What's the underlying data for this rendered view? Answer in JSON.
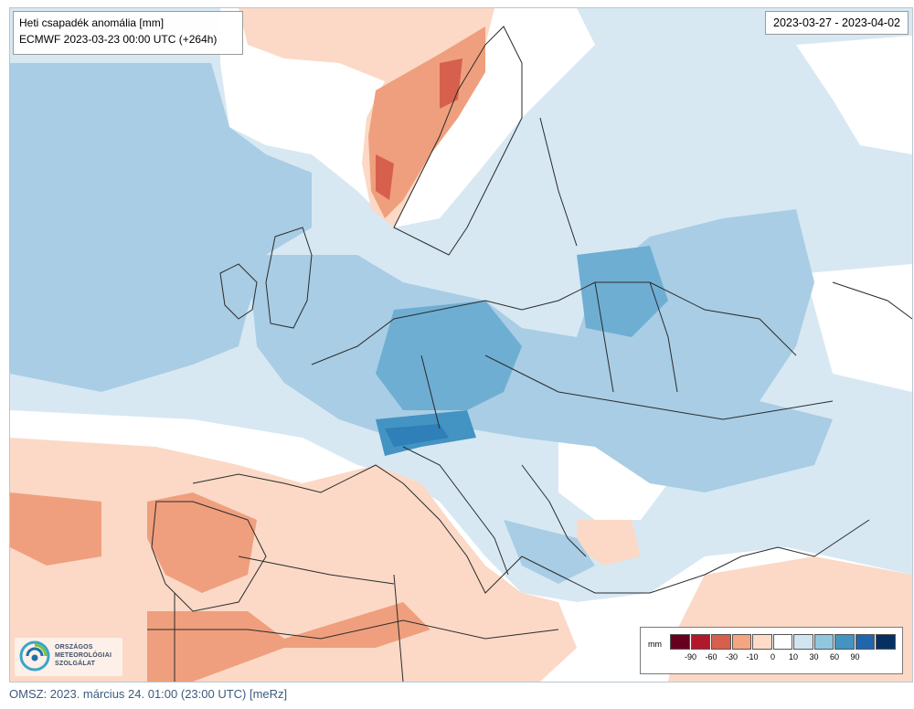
{
  "map": {
    "title": "Heti csapadék anomália [mm]",
    "subtitle": "ECMWF 2023-03-23 00:00 UTC (+264h)",
    "period": "2023-03-27 - 2023-04-02"
  },
  "legend": {
    "unit": "mm",
    "labels": [
      "-90",
      "-60",
      "-30",
      "-10",
      "0",
      "10",
      "30",
      "60",
      "90"
    ],
    "colors": [
      "#67001f",
      "#b2182b",
      "#d6604d",
      "#f4a582",
      "#fddbc7",
      "#ffffff",
      "#d1e5f0",
      "#92c5de",
      "#4393c3",
      "#2166ac",
      "#053061"
    ]
  },
  "logo": {
    "line1": "ORSZÁGOS",
    "line2": "METEOROLÓGIAI",
    "line3": "SZOLGÁLAT"
  },
  "footer": {
    "text": "OMSZ: 2023. március 24. 01:00 (23:00  UTC)  [meRz]"
  }
}
